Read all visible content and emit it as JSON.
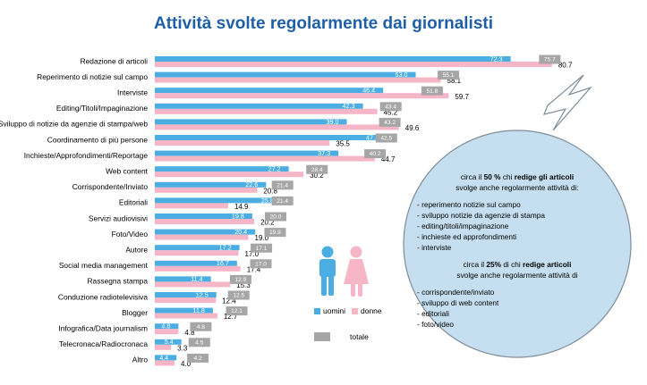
{
  "title": "Attività svolte regolarmente dai giornalisti",
  "colors": {
    "uomini": "#4aaee3",
    "donne": "#f7b6c8",
    "totale": "#a6a6a6",
    "title": "#1f5fa8",
    "circle": "#c5dff0"
  },
  "legend": {
    "uomini": "uomini",
    "donne": "donne",
    "totale": "totale"
  },
  "chart_data": {
    "type": "bar",
    "orientation": "horizontal",
    "categories": [
      "Redazione di articoli",
      "Reperimento di notizie sul campo",
      "Interviste",
      "Editing/Titoli/Impaginazione",
      "Sviluppo di notizie da agenzie di stampa/web",
      "Coordinamento di più persone",
      "Inchieste/Approfondimenti/Reportage",
      "Web content",
      "Corrispondente/Inviato",
      "Editoriali",
      "Servizi audiovisivi",
      "Foto/Video",
      "Autore",
      "Social media management",
      "Rassegna stampa",
      "Conduzione radiotelevisiva",
      "Blogger",
      "Infografica/Data journalism",
      "Telecronaca/Radiocronaca",
      "Altro"
    ],
    "series": [
      {
        "name": "uomini",
        "values": [
          72.3,
          53.0,
          46.4,
          42.3,
          39.0,
          47.1,
          37.3,
          27.2,
          22.6,
          25.8,
          19.8,
          20.4,
          17.2,
          16.7,
          11.4,
          12.5,
          11.8,
          4.8,
          5.4,
          4.4
        ]
      },
      {
        "name": "donne",
        "values": [
          80.7,
          58.1,
          59.7,
          45.2,
          49.6,
          35.5,
          44.7,
          30.2,
          20.8,
          14.9,
          20.2,
          19.0,
          17.0,
          17.4,
          15.3,
          12.4,
          12.7,
          4.8,
          3.3,
          4.0
        ]
      },
      {
        "name": "totale",
        "values": [
          75.7,
          55.1,
          51.8,
          43.4,
          43.2,
          42.5,
          40.2,
          28.4,
          21.4,
          21.4,
          20.0,
          19.9,
          17.1,
          17.0,
          12.9,
          12.5,
          12.1,
          4.8,
          4.5,
          4.2
        ]
      }
    ],
    "xlim": [
      0,
      100
    ],
    "grid": false,
    "legend_position": "right"
  },
  "callout": {
    "block1": {
      "prefix": "circa il ",
      "pct": "50 %",
      "mid": "  chi ",
      "bold": "redige gli articoli",
      "line2": "svolge anche regolarmente attività di:",
      "items": [
        "- reperimento notizie sul campo",
        "- sviluppo notizie da agenzie di stampa",
        "- editing/titoli/impaginazione",
        "- inchieste ed approfondimenti",
        "- interviste"
      ]
    },
    "block2": {
      "prefix": "circa il ",
      "pct": "25%",
      "mid": " di chi ",
      "bold": "redige articoli",
      "line2": "svolge anche regolarmente attività di",
      "items": [
        "- corrispondente/inviato",
        "- sviluppo di web content",
        "- editoriali",
        "- foto/video"
      ]
    }
  }
}
